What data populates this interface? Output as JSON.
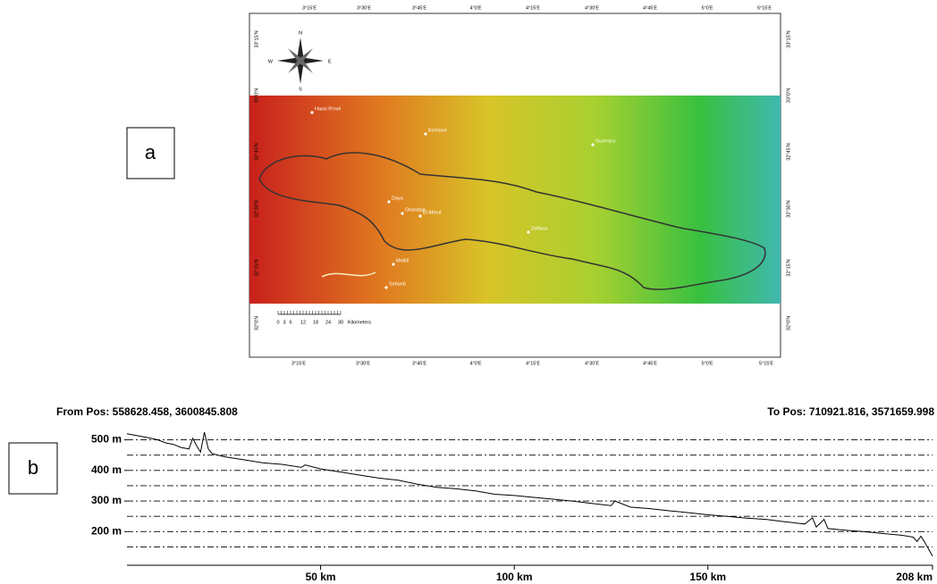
{
  "panels": {
    "a": "a",
    "b": "b"
  },
  "map": {
    "lon_labels": [
      "3°15'E",
      "3°30'E",
      "3°45'E",
      "4°0'E",
      "4°15'E",
      "4°30'E",
      "4°45'E",
      "5°0'E",
      "5°15'E"
    ],
    "lat_labels": [
      "33°15'N",
      "33°0'N",
      "32°45'N",
      "32°30'N",
      "32°15'N",
      "32°0'N"
    ],
    "compass": {
      "n": "N",
      "s": "S",
      "e": "E",
      "w": "W"
    },
    "places": [
      "Hassi R'mel",
      "Berriane",
      "Guerrara",
      "Daya",
      "Ghardaia",
      "El Atteuf",
      "Zelfana",
      "Metlili",
      "Sebseb"
    ],
    "scale_bar": {
      "ticks": [
        0,
        3,
        6,
        12,
        18,
        24,
        30
      ],
      "unit": "Kilometers"
    }
  },
  "chart_data": {
    "type": "line",
    "from_label": "From Pos: 558628.458, 3600845.808",
    "to_label": "To Pos: 710921.816, 3571659.998",
    "x": [
      0,
      2,
      5,
      8,
      10,
      12,
      14,
      16,
      17,
      18,
      19,
      20,
      21,
      22,
      25,
      30,
      35,
      40,
      45,
      46,
      50,
      55,
      60,
      65,
      70,
      75,
      80,
      85,
      90,
      95,
      100,
      105,
      110,
      115,
      120,
      125,
      126,
      130,
      135,
      140,
      145,
      150,
      155,
      160,
      165,
      170,
      175,
      177,
      178,
      180,
      181,
      185,
      190,
      195,
      200,
      203,
      204,
      205,
      206,
      208
    ],
    "series": [
      {
        "color": "#000000",
        "values": [
          520,
          515,
          508,
          500,
          490,
          485,
          475,
          470,
          505,
          480,
          460,
          525,
          470,
          455,
          445,
          435,
          425,
          420,
          410,
          418,
          405,
          395,
          385,
          375,
          368,
          355,
          345,
          340,
          333,
          322,
          318,
          312,
          306,
          300,
          292,
          285,
          300,
          280,
          275,
          268,
          262,
          255,
          250,
          244,
          240,
          232,
          225,
          245,
          215,
          240,
          210,
          205,
          200,
          194,
          188,
          182,
          168,
          185,
          165,
          120
        ]
      }
    ],
    "xlim": [
      0,
      208
    ],
    "ylim": [
      90,
      525
    ],
    "xticks": [
      {
        "value": 50,
        "label": "50 km"
      },
      {
        "value": 100,
        "label": "100 km"
      },
      {
        "value": 150,
        "label": "150 km"
      },
      {
        "value": 208,
        "label": "208 km"
      }
    ],
    "yticks": [
      {
        "value": 200,
        "label": "200 m"
      },
      {
        "value": 300,
        "label": "300 m"
      },
      {
        "value": 400,
        "label": "400 m"
      },
      {
        "value": 500,
        "label": "500 m"
      }
    ],
    "grid_lines": [
      150,
      200,
      250,
      300,
      350,
      400,
      450,
      500
    ],
    "grid": true
  }
}
